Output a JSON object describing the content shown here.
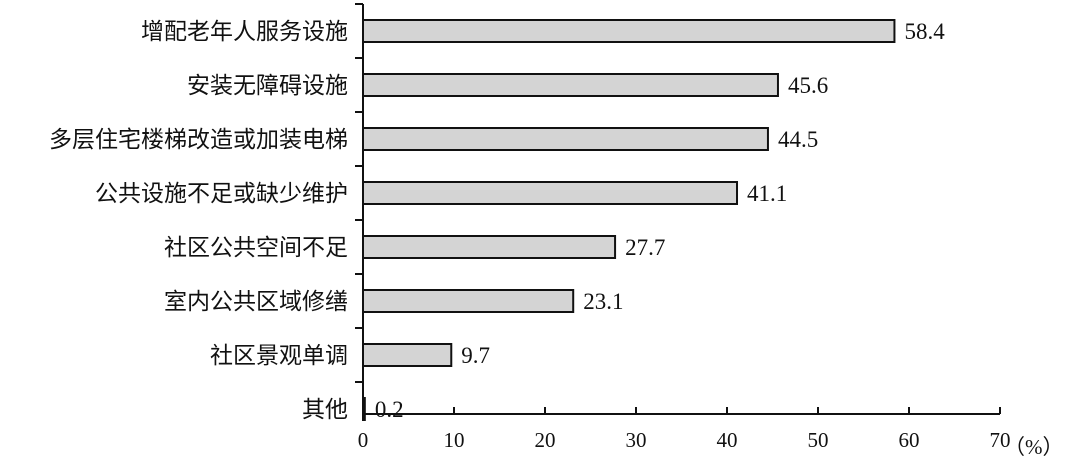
{
  "chart_data": {
    "type": "bar",
    "orientation": "horizontal",
    "categories": [
      "增配老年人服务设施",
      "安装无障碍设施",
      "多层住宅楼梯改造或加装电梯",
      "公共设施不足或缺少维护",
      "社区公共空间不足",
      "室内公共区域修缮",
      "社区景观单调",
      "其他"
    ],
    "values": [
      58.4,
      45.6,
      44.5,
      41.1,
      27.7,
      23.1,
      9.7,
      0.2
    ],
    "value_labels": [
      "58.4",
      "45.6",
      "44.5",
      "41.1",
      "27.7",
      "23.1",
      "9.7",
      "0.2"
    ],
    "xlim": [
      0,
      70
    ],
    "xticks": [
      0,
      10,
      20,
      30,
      40,
      50,
      60,
      70
    ],
    "xunit": "（%）",
    "bar_color": "#d4d4d4",
    "grid": false
  }
}
